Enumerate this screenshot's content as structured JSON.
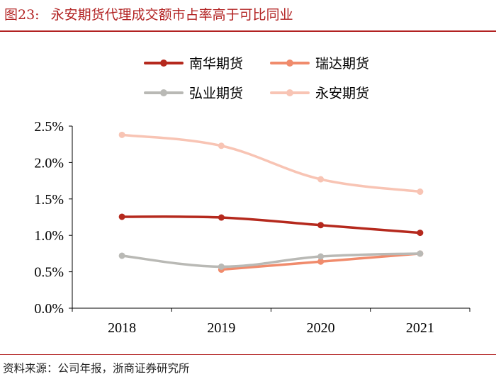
{
  "figure": {
    "label": "图23:",
    "title": "永安期货代理成交额市占率高于可比同业",
    "source": "资料来源：公司年报，浙商证券研究所"
  },
  "colors": {
    "brand": "#b22222"
  },
  "chart_data": {
    "type": "line",
    "title": "永安期货代理成交额市占率高于可比同业",
    "xlabel": "",
    "ylabel": "",
    "categories": [
      "2018",
      "2019",
      "2020",
      "2021"
    ],
    "ylim": [
      0,
      0.025
    ],
    "yticks": [
      0,
      0.005,
      0.01,
      0.015,
      0.02,
      0.025
    ],
    "ytick_labels": [
      "0.0%",
      "0.5%",
      "1.0%",
      "1.5%",
      "2.0%",
      "2.5%"
    ],
    "grid": false,
    "legend_position": "top",
    "series": [
      {
        "name": "南华期货",
        "color": "#b5291d",
        "values": [
          0.01255,
          0.01245,
          0.0114,
          0.01035
        ]
      },
      {
        "name": "瑞达期货",
        "color": "#f08b6c",
        "values": [
          null,
          0.0053,
          0.0064,
          0.0075
        ]
      },
      {
        "name": "弘业期货",
        "color": "#b9b9b5",
        "values": [
          0.0072,
          0.0057,
          0.0071,
          0.0075
        ]
      },
      {
        "name": "永安期货",
        "color": "#f8c4b4",
        "values": [
          0.0238,
          0.0223,
          0.0177,
          0.016
        ]
      }
    ]
  }
}
